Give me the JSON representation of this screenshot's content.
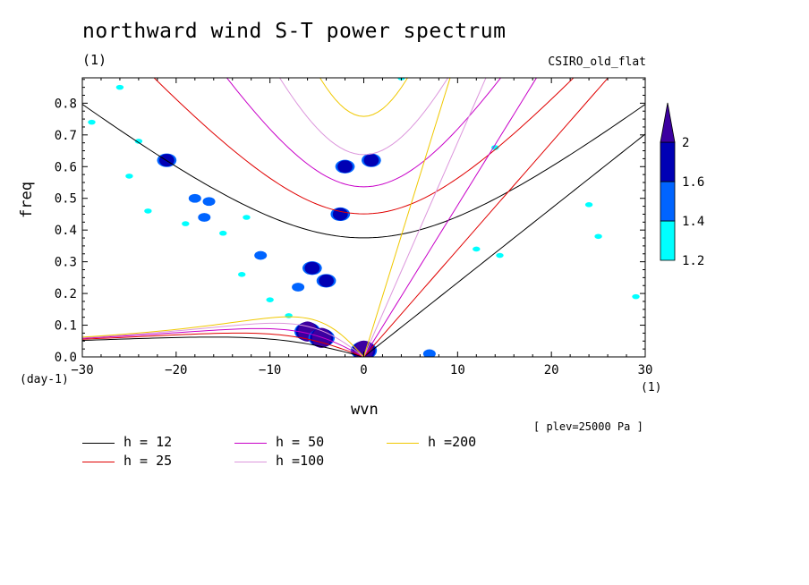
{
  "title": "northward wind S-T power spectrum",
  "subtitle_left": "(1)",
  "subtitle_right": "CSIRO_old_flat",
  "annotation": "[ plev=25000 Pa ]",
  "chart_data": {
    "type": "contour",
    "xlabel": "wvn",
    "ylabel": "freq",
    "x_unit": "(1)",
    "y_unit": "(day-1)",
    "xlim": [
      -30,
      30
    ],
    "ylim": [
      0,
      0.88
    ],
    "x_ticks": [
      -30,
      -20,
      -10,
      0,
      10,
      20,
      30
    ],
    "y_ticks": [
      0.0,
      0.1,
      0.2,
      0.3,
      0.4,
      0.5,
      0.6,
      0.7,
      0.8
    ],
    "y_tick_labels": [
      "0.0",
      "0.1",
      "0.2",
      "0.3",
      "0.4",
      "0.5",
      "0.6",
      "0.7",
      "0.8"
    ],
    "colorbar": {
      "levels": [
        1.2,
        1.4,
        1.6,
        2
      ],
      "labels": [
        "1.2",
        "1.4",
        "1.6",
        "2"
      ],
      "colors": [
        "#00ffff",
        "#0064ff",
        "#0000b4",
        "#3c00a0"
      ]
    },
    "dispersion_curves": [
      {
        "name": "h = 12",
        "h": 12,
        "color": "#000000"
      },
      {
        "name": "h = 25",
        "h": 25,
        "color": "#e00000"
      },
      {
        "name": "h = 50",
        "h": 50,
        "color": "#c800c8"
      },
      {
        "name": "h =100",
        "h": 100,
        "color": "#dc96dc"
      },
      {
        "name": "h =200",
        "h": 200,
        "color": "#f0c800"
      }
    ],
    "power_blobs": [
      {
        "x": -6.0,
        "y": 0.08,
        "level": 2
      },
      {
        "x": -4.5,
        "y": 0.06,
        "level": 2
      },
      {
        "x": 0.0,
        "y": 0.02,
        "level": 2
      },
      {
        "x": -5.5,
        "y": 0.28,
        "level": 1.6
      },
      {
        "x": -4.0,
        "y": 0.24,
        "level": 1.6
      },
      {
        "x": -7.0,
        "y": 0.22,
        "level": 1.4
      },
      {
        "x": -2.0,
        "y": 0.6,
        "level": 1.6
      },
      {
        "x": 0.8,
        "y": 0.62,
        "level": 1.6
      },
      {
        "x": -11.0,
        "y": 0.32,
        "level": 1.4
      },
      {
        "x": -21.0,
        "y": 0.62,
        "level": 1.6
      },
      {
        "x": -16.5,
        "y": 0.49,
        "level": 1.4
      },
      {
        "x": -17.0,
        "y": 0.44,
        "level": 1.4
      },
      {
        "x": -24.0,
        "y": 0.68,
        "level": 1.2
      },
      {
        "x": -26.0,
        "y": 0.85,
        "level": 1.2
      },
      {
        "x": -18.0,
        "y": 0.5,
        "level": 1.4
      },
      {
        "x": -19.0,
        "y": 0.42,
        "level": 1.2
      },
      {
        "x": -15.0,
        "y": 0.39,
        "level": 1.2
      },
      {
        "x": -13.0,
        "y": 0.26,
        "level": 1.2
      },
      {
        "x": -10.0,
        "y": 0.18,
        "level": 1.2
      },
      {
        "x": -8.0,
        "y": 0.13,
        "level": 1.2
      },
      {
        "x": -2.5,
        "y": 0.45,
        "level": 1.6
      },
      {
        "x": 7.0,
        "y": 0.01,
        "level": 1.4
      },
      {
        "x": 12.0,
        "y": 0.34,
        "level": 1.2
      },
      {
        "x": 14.5,
        "y": 0.32,
        "level": 1.2
      },
      {
        "x": 29.0,
        "y": 0.19,
        "level": 1.2
      },
      {
        "x": 24.0,
        "y": 0.48,
        "level": 1.2
      },
      {
        "x": 25.0,
        "y": 0.38,
        "level": 1.2
      },
      {
        "x": -29.0,
        "y": 0.74,
        "level": 1.2
      },
      {
        "x": -25.0,
        "y": 0.57,
        "level": 1.2
      },
      {
        "x": -23.0,
        "y": 0.46,
        "level": 1.2
      },
      {
        "x": -12.5,
        "y": 0.44,
        "level": 1.2
      },
      {
        "x": 4.0,
        "y": 0.88,
        "level": 1.2
      },
      {
        "x": 14.0,
        "y": 0.66,
        "level": 1.2
      }
    ]
  }
}
